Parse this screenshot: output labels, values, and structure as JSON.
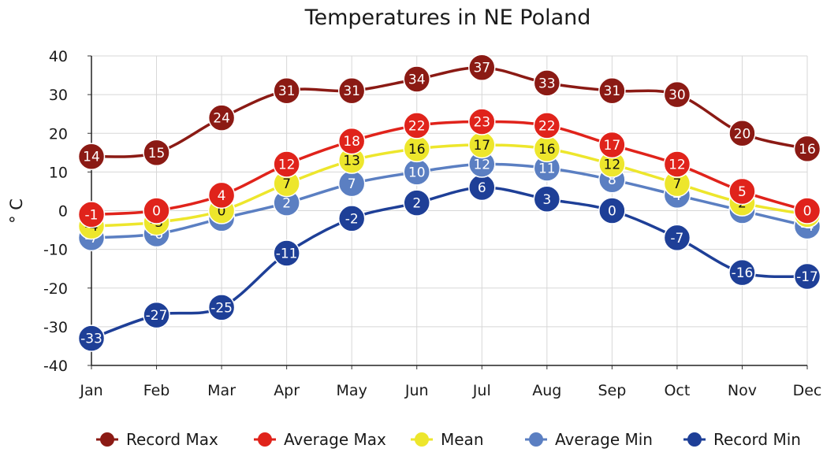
{
  "chart_data": {
    "type": "line",
    "title": "Temperatures in NE Poland",
    "xlabel": "",
    "ylabel": "° C",
    "ylim": [
      -40,
      40
    ],
    "yticks": [
      40,
      30,
      20,
      10,
      0,
      -10,
      -20,
      -30,
      -40
    ],
    "grid": true,
    "legend_position": "bottom",
    "categories": [
      "Jan",
      "Feb",
      "Mar",
      "Apr",
      "May",
      "Jun",
      "Jul",
      "Aug",
      "Sep",
      "Oct",
      "Nov",
      "Dec"
    ],
    "series": [
      {
        "name": "Record Max",
        "color": "#8b1a14",
        "label_color": "#ffffff",
        "values": [
          14,
          15,
          24,
          31,
          31,
          34,
          37,
          33,
          31,
          30,
          20,
          16
        ]
      },
      {
        "name": "Average Max",
        "color": "#e0231b",
        "label_color": "#ffffff",
        "values": [
          -1,
          0,
          4,
          12,
          18,
          22,
          23,
          22,
          17,
          12,
          5,
          0
        ]
      },
      {
        "name": "Mean",
        "color": "#ede62c",
        "label_color": "#111111",
        "values": [
          -4,
          -3,
          0,
          7,
          13,
          16,
          17,
          16,
          12,
          7,
          2,
          -1
        ]
      },
      {
        "name": "Average Min",
        "color": "#5b7fc2",
        "label_color": "#ffffff",
        "values": [
          -7,
          -6,
          -2,
          2,
          7,
          10,
          12,
          11,
          8,
          4,
          0,
          -4
        ]
      },
      {
        "name": "Record Min",
        "color": "#1e3f97",
        "label_color": "#ffffff",
        "values": [
          -33,
          -27,
          -25,
          -11,
          -2,
          2,
          6,
          3,
          0,
          -7,
          -16,
          -17
        ]
      }
    ]
  }
}
